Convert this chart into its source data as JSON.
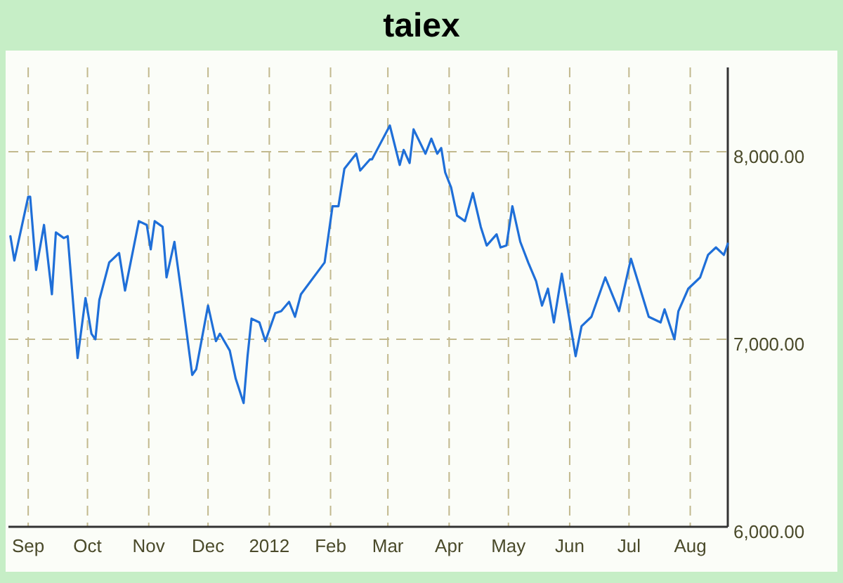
{
  "chart_data": {
    "type": "line",
    "title": "taiex",
    "x": [
      "2011-08-23",
      "2011-08-25",
      "2011-09-01",
      "2011-09-02",
      "2011-09-05",
      "2011-09-09",
      "2011-09-13",
      "2011-09-15",
      "2011-09-19",
      "2011-09-21",
      "2011-09-26",
      "2011-09-30",
      "2011-10-03",
      "2011-10-05",
      "2011-10-07",
      "2011-10-12",
      "2011-10-17",
      "2011-10-20",
      "2011-10-27",
      "2011-10-31",
      "2011-11-02",
      "2011-11-04",
      "2011-11-08",
      "2011-11-10",
      "2011-11-14",
      "2011-11-15",
      "2011-11-18",
      "2011-11-23",
      "2011-11-25",
      "2011-12-01",
      "2011-12-05",
      "2011-12-07",
      "2011-12-12",
      "2011-12-15",
      "2011-12-19",
      "2011-12-21",
      "2011-12-23",
      "2011-12-27",
      "2011-12-30",
      "2012-01-04",
      "2012-01-07",
      "2012-01-11",
      "2012-01-14",
      "2012-01-17",
      "2012-01-29",
      "2012-02-02",
      "2012-02-05",
      "2012-02-08",
      "2012-02-14",
      "2012-02-16",
      "2012-02-21",
      "2012-02-22",
      "2012-02-24",
      "2012-03-02",
      "2012-03-07",
      "2012-03-09",
      "2012-03-12",
      "2012-03-14",
      "2012-03-20",
      "2012-03-23",
      "2012-03-26",
      "2012-03-28",
      "2012-03-30",
      "2012-04-02",
      "2012-04-05",
      "2012-04-09",
      "2012-04-13",
      "2012-04-17",
      "2012-04-20",
      "2012-04-25",
      "2012-04-27",
      "2012-04-30",
      "2012-05-03",
      "2012-05-07",
      "2012-05-11",
      "2012-05-15",
      "2012-05-18",
      "2012-05-21",
      "2012-05-24",
      "2012-05-28",
      "2012-06-04",
      "2012-06-07",
      "2012-06-12",
      "2012-06-15",
      "2012-06-19",
      "2012-06-26",
      "2012-07-02",
      "2012-07-11",
      "2012-07-17",
      "2012-07-19",
      "2012-07-24",
      "2012-07-26",
      "2012-07-31",
      "2012-08-06",
      "2012-08-10",
      "2012-08-14",
      "2012-08-18",
      "2012-08-20"
    ],
    "series": [
      {
        "color": "#1f6fd8",
        "values": [
          7550,
          7420,
          7760,
          7760,
          7370,
          7610,
          7240,
          7570,
          7540,
          7550,
          6900,
          7220,
          7030,
          7000,
          7210,
          7410,
          7460,
          7260,
          7630,
          7610,
          7480,
          7630,
          7600,
          7330,
          7520,
          7440,
          7210,
          6810,
          6840,
          7180,
          6990,
          7030,
          6940,
          6790,
          6660,
          6910,
          7110,
          7090,
          6990,
          7140,
          7150,
          7200,
          7120,
          7240,
          7410,
          7710,
          7710,
          7910,
          7990,
          7900,
          7960,
          7960,
          8000,
          8140,
          7930,
          8010,
          7940,
          8120,
          7990,
          8070,
          7990,
          8020,
          7890,
          7810,
          7660,
          7630,
          7780,
          7600,
          7500,
          7560,
          7490,
          7500,
          7710,
          7520,
          7410,
          7310,
          7180,
          7270,
          7090,
          7350,
          6910,
          7070,
          7120,
          7210,
          7330,
          7150,
          7430,
          7120,
          7090,
          7160,
          7000,
          7150,
          7270,
          7330,
          7450,
          7490,
          7450,
          7510
        ]
      }
    ],
    "xlim": [
      "2011-08-22",
      "2012-08-20"
    ],
    "xticks": [
      {
        "value": "2011-09-01",
        "label": "Sep"
      },
      {
        "value": "2011-10-01",
        "label": "Oct"
      },
      {
        "value": "2011-11-01",
        "label": "Nov"
      },
      {
        "value": "2011-12-01",
        "label": "Dec"
      },
      {
        "value": "2012-01-01",
        "label": "2012"
      },
      {
        "value": "2012-02-01",
        "label": "Feb"
      },
      {
        "value": "2012-03-01",
        "label": "Mar"
      },
      {
        "value": "2012-04-01",
        "label": "Apr"
      },
      {
        "value": "2012-05-01",
        "label": "May"
      },
      {
        "value": "2012-06-01",
        "label": "Jun"
      },
      {
        "value": "2012-07-01",
        "label": "Jul"
      },
      {
        "value": "2012-08-01",
        "label": "Aug"
      }
    ],
    "ylim": [
      6000,
      8450
    ],
    "yticks": [
      {
        "value": 6000,
        "label": "6,000.00"
      },
      {
        "value": 7000,
        "label": "7,000.00"
      },
      {
        "value": 8000,
        "label": "8,000.00"
      }
    ],
    "grid": true,
    "marker": "none",
    "line_style": "solid"
  }
}
